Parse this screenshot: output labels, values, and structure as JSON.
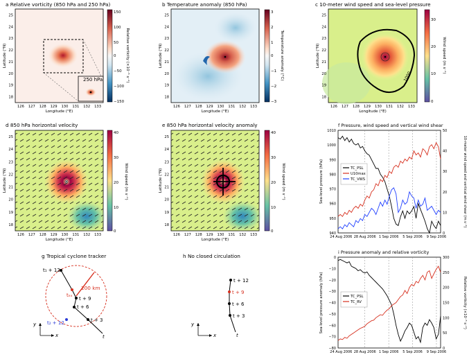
{
  "colors": {
    "accent_red": "#d7301f",
    "tracker_blue": "#2b3bd6",
    "line_black": "#000000",
    "line_blue": "#1f3fff"
  },
  "panels": {
    "a": {
      "title": "a   Relative vorticity (850 hPa and 250 hPa)",
      "inset_label": "250 hPa",
      "cbar_label": "Relative vorticity (×10⁻⁵ s⁻¹)",
      "cbar_ticks": [
        "150",
        "100",
        "50",
        "0",
        "−50",
        "−100",
        "−150"
      ]
    },
    "b": {
      "title": "b   Temperature anomaly (850 hPa)",
      "cbar_label": "Temperature anomaly (°C)",
      "cbar_ticks": [
        "3",
        "2",
        "1",
        "0",
        "−1",
        "−2",
        "−3"
      ]
    },
    "c": {
      "title": "c   10-meter wind speed and sea-level pressure",
      "contour_label": "1000",
      "cbar_label": "Wind speed (m s⁻¹)",
      "cbar_ticks": [
        "30",
        "20",
        "10",
        "0"
      ]
    },
    "d": {
      "title": "d   850 hPa horizontal velocity",
      "cbar_label": "Wind speed (m s⁻¹)",
      "cbar_ticks": [
        "40",
        "30",
        "20",
        "10",
        "0"
      ]
    },
    "e": {
      "title": "e   850 hPa horizontal velocity anomaly",
      "cbar_label": "Wind speed (m s⁻¹)",
      "cbar_ticks": [
        "40",
        "30",
        "20",
        "10",
        "0"
      ]
    },
    "f": {
      "title": "f   Pressure, wind speed and vertical wind shear",
      "ylabel_left": "Sea-level pressure (hPa)",
      "ylabel_right": "10-meter wind speed and vertical wind shear (m s⁻¹)"
    },
    "g": {
      "title": "g   Tropical cyclone tracker",
      "radius_label": "200 km",
      "labels": {
        "t12": "t₁ + 12",
        "tex": "tₑₓ",
        "t9": "t + 9",
        "t6": "t + 6",
        "t3": "t + 3",
        "t": "t",
        "t2": "t₂ + 12",
        "x": "x",
        "y": "y"
      }
    },
    "h": {
      "title": "h   No closed circulation",
      "labels": {
        "t12": "t + 12",
        "t9": "t + 9",
        "t6": "t + 6",
        "t3": "t + 3",
        "t": "t",
        "x": "x",
        "y": "y"
      }
    },
    "i": {
      "title": "i   Pressure anomaly and relative vorticity",
      "ylabel_left": "Sea-level pressure anomaly (hPa)",
      "ylabel_right": "Relative vorticity (×10⁻⁵ s⁻¹)"
    }
  },
  "map_axes": {
    "xlabel": "Longitude (°E)",
    "ylabel": "Latitude (°N)",
    "xticks": [
      "126",
      "127",
      "128",
      "129",
      "130",
      "131",
      "132",
      "133"
    ],
    "yticks": [
      "25",
      "24",
      "23",
      "22",
      "21",
      "20",
      "19",
      "18"
    ]
  },
  "chart_data": [
    {
      "panel": "f",
      "type": "line",
      "title": "Pressure, wind speed and vertical wind shear",
      "x_ticks": [
        "24 Aug 2006",
        "28 Aug 2006",
        "1 Sep 2006",
        "5 Sep 2006",
        "9 Sep 2006"
      ],
      "ylim_left": [
        940,
        1010
      ],
      "yticks_left": [
        940,
        950,
        960,
        970,
        980,
        990,
        1000,
        1010
      ],
      "ylim_right": [
        0,
        50
      ],
      "yticks_right": [
        0,
        10,
        20,
        30,
        40,
        50
      ],
      "legend": [
        "TC_PSL",
        "U10max",
        "TC_VWS"
      ],
      "series": [
        {
          "name": "TC_PSL",
          "axis": "left",
          "color": "#000000",
          "values": [
            1005,
            1004,
            1006,
            1003,
            1005,
            1002,
            1004,
            1001,
            1000,
            1001,
            998,
            999,
            996,
            994,
            993,
            990,
            987,
            984,
            984,
            980,
            978,
            975,
            970,
            965,
            958,
            950,
            946,
            945,
            951,
            955,
            950,
            955,
            953,
            955,
            958,
            950,
            960,
            956,
            952,
            948,
            943,
            940,
            948,
            945,
            943,
            948,
            945
          ]
        },
        {
          "name": "U10max",
          "axis": "right",
          "color": "#d7301f",
          "values": [
            8,
            9,
            8,
            10,
            9,
            11,
            10,
            12,
            13,
            12,
            14,
            13,
            16,
            18,
            17,
            20,
            21,
            24,
            23,
            26,
            25,
            28,
            27,
            30,
            29,
            32,
            33,
            32,
            35,
            34,
            36,
            35,
            37,
            36,
            40,
            38,
            39,
            37,
            41,
            40,
            38,
            42,
            43,
            41,
            44,
            42,
            36
          ]
        },
        {
          "name": "TC_VWS",
          "axis": "right",
          "color": "#1f3fff",
          "values": [
            2,
            3,
            2,
            4,
            3,
            5,
            4,
            3,
            6,
            5,
            7,
            6,
            9,
            8,
            10,
            12,
            11,
            9,
            12,
            15,
            13,
            16,
            14,
            18,
            21,
            22,
            19,
            10,
            12,
            16,
            14,
            15,
            20,
            18,
            17,
            12,
            16,
            13,
            14,
            17,
            11,
            12,
            13,
            11,
            9,
            11,
            10
          ]
        }
      ]
    },
    {
      "panel": "i",
      "type": "line",
      "title": "Pressure anomaly and relative vorticity",
      "x_ticks": [
        "24 Aug 2006",
        "28 Aug 2006",
        "1 Sep 2006",
        "5 Sep 2006",
        "9 Sep 2006"
      ],
      "ylim_left": [
        -80,
        0
      ],
      "yticks_left": [
        -80,
        -70,
        -60,
        -50,
        -40,
        -30,
        -20,
        -10,
        0
      ],
      "ylim_right": [
        0,
        300
      ],
      "yticks_right": [
        0,
        50,
        100,
        150,
        200,
        250,
        300
      ],
      "legend": [
        "TC_PSL",
        "TC_RV"
      ],
      "series": [
        {
          "name": "TC_PSL",
          "axis": "left",
          "color": "#000000",
          "values": [
            -3,
            -2,
            -3,
            -4,
            -5,
            -4,
            -8,
            -9,
            -10,
            -12,
            -11,
            -13,
            -14,
            -13,
            -16,
            -18,
            -20,
            -22,
            -24,
            -26,
            -28,
            -31,
            -34,
            -38,
            -42,
            -50,
            -60,
            -68,
            -74,
            -70,
            -65,
            -62,
            -58,
            -60,
            -66,
            -72,
            -70,
            -75,
            -62,
            -58,
            -60,
            -55,
            -58,
            -62,
            -72,
            -68,
            -52
          ]
        },
        {
          "name": "TC_RV",
          "axis": "right",
          "color": "#d7301f",
          "values": [
            25,
            30,
            28,
            35,
            32,
            40,
            45,
            50,
            55,
            60,
            65,
            68,
            72,
            80,
            85,
            90,
            92,
            100,
            105,
            110,
            108,
            118,
            125,
            130,
            140,
            145,
            150,
            160,
            170,
            175,
            190,
            180,
            200,
            210,
            205,
            220,
            215,
            230,
            240,
            225,
            250,
            255,
            230,
            245,
            260,
            270,
            250
          ]
        }
      ]
    }
  ]
}
